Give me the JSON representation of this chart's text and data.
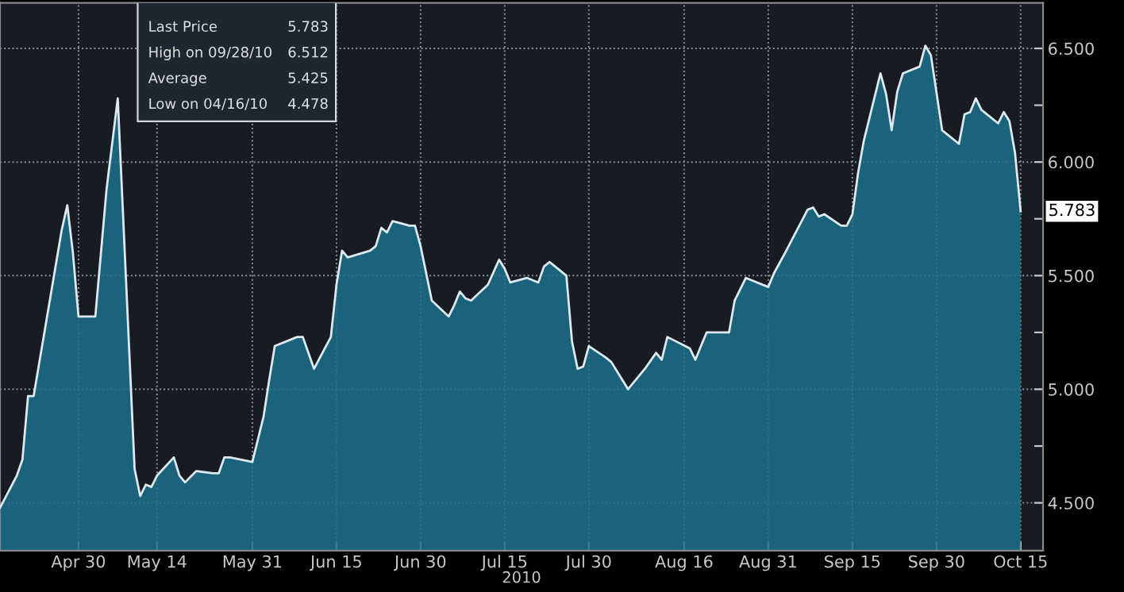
{
  "chart_data": {
    "type": "area",
    "x": [
      "2010-04-16",
      "2010-04-19",
      "2010-04-20",
      "2010-04-21",
      "2010-04-22",
      "2010-04-27",
      "2010-04-28",
      "2010-04-29",
      "2010-04-30",
      "2010-05-03",
      "2010-05-05",
      "2010-05-07",
      "2010-05-10",
      "2010-05-11",
      "2010-05-12",
      "2010-05-13",
      "2010-05-14",
      "2010-05-17",
      "2010-05-18",
      "2010-05-19",
      "2010-05-21",
      "2010-05-24",
      "2010-05-25",
      "2010-05-26",
      "2010-05-27",
      "2010-05-31",
      "2010-06-02",
      "2010-06-03",
      "2010-06-04",
      "2010-06-08",
      "2010-06-09",
      "2010-06-10",
      "2010-06-11",
      "2010-06-14",
      "2010-06-15",
      "2010-06-16",
      "2010-06-17",
      "2010-06-21",
      "2010-06-22",
      "2010-06-23",
      "2010-06-24",
      "2010-06-25",
      "2010-06-28",
      "2010-06-29",
      "2010-06-30",
      "2010-07-02",
      "2010-07-05",
      "2010-07-06",
      "2010-07-07",
      "2010-07-08",
      "2010-07-09",
      "2010-07-12",
      "2010-07-14",
      "2010-07-15",
      "2010-07-16",
      "2010-07-19",
      "2010-07-21",
      "2010-07-22",
      "2010-07-23",
      "2010-07-26",
      "2010-07-27",
      "2010-07-28",
      "2010-07-29",
      "2010-07-30",
      "2010-08-02",
      "2010-08-03",
      "2010-08-05",
      "2010-08-06",
      "2010-08-09",
      "2010-08-11",
      "2010-08-12",
      "2010-08-13",
      "2010-08-17",
      "2010-08-18",
      "2010-08-19",
      "2010-08-20",
      "2010-08-24",
      "2010-08-25",
      "2010-08-27",
      "2010-08-31",
      "2010-09-01",
      "2010-09-03",
      "2010-09-07",
      "2010-09-08",
      "2010-09-09",
      "2010-09-10",
      "2010-09-13",
      "2010-09-14",
      "2010-09-15",
      "2010-09-16",
      "2010-09-17",
      "2010-09-20",
      "2010-09-21",
      "2010-09-22",
      "2010-09-23",
      "2010-09-24",
      "2010-09-27",
      "2010-09-28",
      "2010-09-29",
      "2010-10-01",
      "2010-10-04",
      "2010-10-05",
      "2010-10-06",
      "2010-10-07",
      "2010-10-08",
      "2010-10-11",
      "2010-10-12",
      "2010-10-13",
      "2010-10-14",
      "2010-10-15"
    ],
    "series": [
      {
        "color": "#1c6e8c",
        "values": [
          4.478,
          4.62,
          4.69,
          4.97,
          4.97,
          5.7,
          5.81,
          5.6,
          5.32,
          5.32,
          5.88,
          6.28,
          4.65,
          4.53,
          4.58,
          4.57,
          4.62,
          4.7,
          4.62,
          4.59,
          4.64,
          4.63,
          4.63,
          4.7,
          4.7,
          4.68,
          4.88,
          5.04,
          5.19,
          5.23,
          5.23,
          5.16,
          5.09,
          5.23,
          5.46,
          5.61,
          5.58,
          5.61,
          5.63,
          5.71,
          5.69,
          5.74,
          5.72,
          5.72,
          5.63,
          5.39,
          5.32,
          5.37,
          5.43,
          5.4,
          5.39,
          5.46,
          5.57,
          5.53,
          5.47,
          5.49,
          5.47,
          5.54,
          5.56,
          5.5,
          5.21,
          5.09,
          5.1,
          5.19,
          5.14,
          5.12,
          5.04,
          5.0,
          5.09,
          5.16,
          5.13,
          5.23,
          5.18,
          5.13,
          5.19,
          5.25,
          5.25,
          5.39,
          5.49,
          5.45,
          5.51,
          5.6,
          5.79,
          5.8,
          5.76,
          5.77,
          5.72,
          5.72,
          5.77,
          5.95,
          6.09,
          6.39,
          6.3,
          6.14,
          6.31,
          6.39,
          6.42,
          6.512,
          6.47,
          6.14,
          6.08,
          6.21,
          6.22,
          6.28,
          6.23,
          6.17,
          6.22,
          6.18,
          6.04,
          5.783
        ]
      }
    ],
    "xlim": [
      "2010-04-16",
      "2010-10-19"
    ],
    "xticks": [
      {
        "value": "2010-04-30",
        "label": "Apr 30"
      },
      {
        "value": "2010-05-14",
        "label": "May 14"
      },
      {
        "value": "2010-05-31",
        "label": "May 31"
      },
      {
        "value": "2010-06-15",
        "label": "Jun 15"
      },
      {
        "value": "2010-06-30",
        "label": "Jun 30"
      },
      {
        "value": "2010-07-15",
        "label": "Jul 15"
      },
      {
        "value": "2010-07-30",
        "label": "Jul 30"
      },
      {
        "value": "2010-08-16",
        "label": "Aug 16"
      },
      {
        "value": "2010-08-31",
        "label": "Aug 31"
      },
      {
        "value": "2010-09-15",
        "label": "Sep 15"
      },
      {
        "value": "2010-09-30",
        "label": "Sep 30"
      },
      {
        "value": "2010-10-15",
        "label": "Oct 15"
      }
    ],
    "ylim": [
      4.29,
      6.7
    ],
    "yticks": [
      {
        "value": 4.5,
        "label": "4.500"
      },
      {
        "value": 4.75,
        "label": null
      },
      {
        "value": 5.0,
        "label": "5.000"
      },
      {
        "value": 5.25,
        "label": null
      },
      {
        "value": 5.5,
        "label": "5.500"
      },
      {
        "value": 5.75,
        "label": null
      },
      {
        "value": 6.0,
        "label": "6.000"
      },
      {
        "value": 6.25,
        "label": null
      },
      {
        "value": 6.5,
        "label": "6.500"
      }
    ],
    "grid": true,
    "xlabel": "2010",
    "line_style": "solid",
    "annotations": [
      "Last Price",
      "5.783",
      "High on 09/28/10",
      "6.512",
      "Average",
      "5.425",
      "Low on 04/16/10",
      "4.478",
      {
        "text": "5.783",
        "x": "2010-10-15",
        "y": 5.783
      }
    ]
  }
}
